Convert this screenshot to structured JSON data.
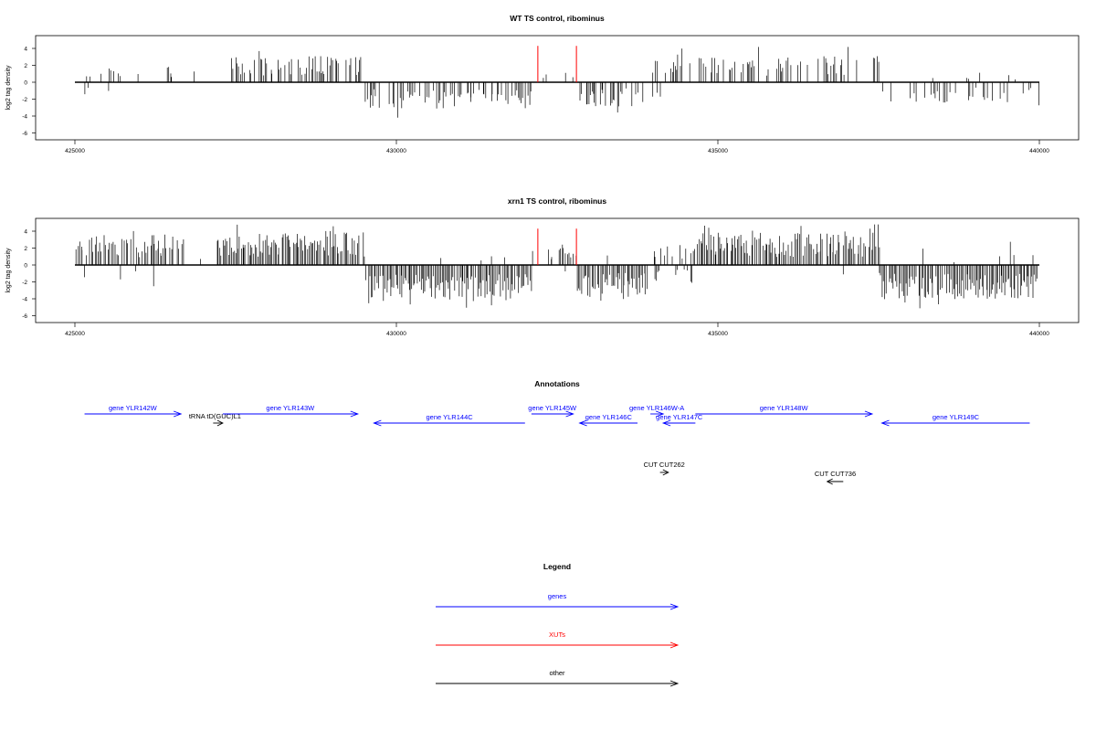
{
  "colors": {
    "gene": "#0000ff",
    "xut": "#ff0000",
    "other": "#000000",
    "bars": "#000000"
  },
  "chart_data": [
    {
      "type": "bar",
      "title": "WT TS control, ribominus",
      "ylabel": "log2 tag density",
      "xlim": [
        425000,
        440000
      ],
      "ylim": [
        -6,
        5
      ],
      "xticks": [
        425000,
        430000,
        435000,
        440000
      ],
      "yticks": [
        -6,
        -4,
        -2,
        0,
        2,
        4
      ],
      "highlight_positions": [
        432200,
        432800
      ],
      "highlight_value": 4.3
    },
    {
      "type": "bar",
      "title": "xrn1 TS control, ribominus",
      "ylabel": "log2 tag density",
      "xlim": [
        425000,
        440000
      ],
      "ylim": [
        -6,
        5
      ],
      "xticks": [
        425000,
        430000,
        435000,
        440000
      ],
      "yticks": [
        -6,
        -4,
        -2,
        0,
        2,
        4
      ],
      "highlight_positions": [
        432200,
        432800
      ],
      "highlight_value": 4.3
    }
  ],
  "annotations": {
    "title": "Annotations",
    "features": [
      {
        "label": "gene YLR142W",
        "type": "gene",
        "strand": "+",
        "start": 425150,
        "end": 426650,
        "row": 0
      },
      {
        "label": "tRNA tD(GUC)L1",
        "type": "other",
        "strand": "+",
        "start": 427150,
        "end": 427300,
        "row": 1
      },
      {
        "label": "gene YLR143W",
        "type": "gene",
        "strand": "+",
        "start": 427300,
        "end": 429400,
        "row": 0
      },
      {
        "label": "gene YLR144C",
        "type": "gene",
        "strand": "-",
        "start": 429650,
        "end": 432000,
        "row": 1
      },
      {
        "label": "gene YLR145W",
        "type": "gene",
        "strand": "+",
        "start": 432100,
        "end": 432750,
        "row": 0
      },
      {
        "label": "gene YLR146C",
        "type": "gene",
        "strand": "-",
        "start": 432850,
        "end": 433750,
        "row": 1
      },
      {
        "label": "gene YLR146W-A",
        "type": "gene",
        "strand": "+",
        "start": 433950,
        "end": 434150,
        "row": 0
      },
      {
        "label": "gene YLR147C",
        "type": "gene",
        "strand": "-",
        "start": 434150,
        "end": 434650,
        "row": 1
      },
      {
        "label": "gene YLR148W",
        "type": "gene",
        "strand": "+",
        "start": 434650,
        "end": 437400,
        "row": 0
      },
      {
        "label": "gene YLR149C",
        "type": "gene",
        "strand": "-",
        "start": 437550,
        "end": 439850,
        "row": 1
      },
      {
        "label": "CUT CUT262",
        "type": "other",
        "strand": "+",
        "start": 434100,
        "end": 434230,
        "row": 2
      },
      {
        "label": "CUT CUT736",
        "type": "other",
        "strand": "-",
        "start": 436700,
        "end": 436950,
        "row": 3
      }
    ]
  },
  "legend": {
    "title": "Legend",
    "items": [
      {
        "label": "genes",
        "type": "gene"
      },
      {
        "label": "XUTs",
        "type": "xut"
      },
      {
        "label": "other",
        "type": "other"
      }
    ]
  }
}
